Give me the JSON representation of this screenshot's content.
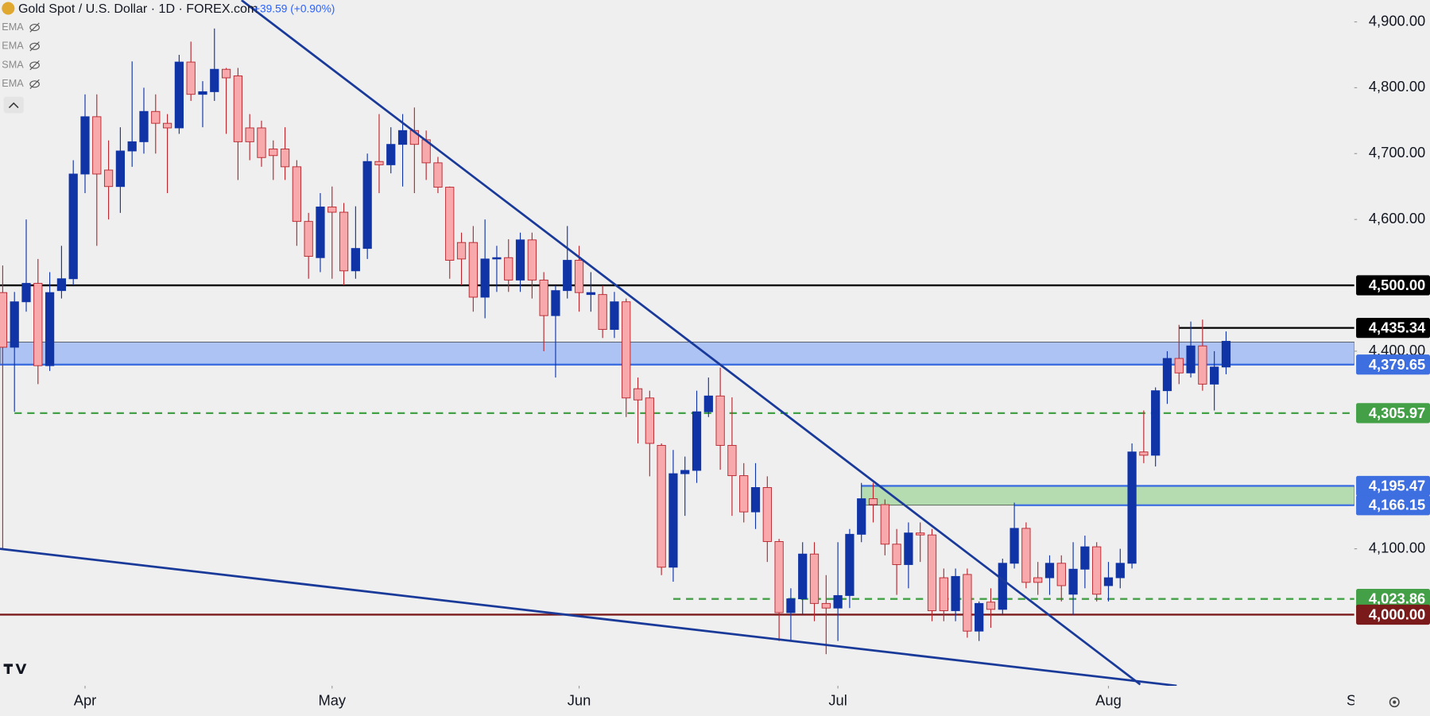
{
  "chart_data": {
    "type": "candlestick",
    "title": "Gold Spot / U.S. Dollar · 1D · FOREX.com",
    "subtitle": "+39.59 (+0.90%)",
    "indicators": [
      "EMA",
      "EMA",
      "SMA",
      "EMA"
    ],
    "up_color": "#1034a6",
    "down_color": "#f7a9ac",
    "down_edge": "#b8262e",
    "open": [
      4489,
      4406,
      4475,
      4503,
      4378,
      4492,
      4510,
      4669,
      4756,
      4675,
      4650,
      4704,
      4718,
      4764,
      4746,
      4739,
      4839,
      4790,
      4794,
      4828,
      4818,
      4739,
      4739,
      4707,
      4707,
      4680,
      4597,
      4542,
      4619,
      4611,
      4522,
      4556,
      4688,
      4683,
      4714,
      4735,
      4721,
      4686,
      4649,
      4565,
      4565,
      4482,
      4540,
      4542,
      4508,
      4569,
      4508,
      4454,
      4492,
      4538,
      4486,
      4486,
      4433,
      4475,
      4343,
      4329,
      4257,
      4072,
      4214,
      4219,
      4308,
      4332,
      4257,
      4211,
      4156,
      4193,
      4111,
      4003,
      4024,
      4092,
      4017,
      4010,
      4029,
      4122,
      4176,
      4167,
      4107,
      4076,
      4124,
      4121,
      4056,
      4006,
      4061,
      3975,
      4019,
      4008,
      4078,
      4131,
      4056,
      4056,
      4078,
      4031,
      4069,
      4103,
      4044,
      4056,
      4078,
      4247,
      4242,
      4340,
      4389,
      4367,
      4408,
      4350,
      4376
    ],
    "high": [
      4530,
      4490,
      4600,
      4540,
      4520,
      4560,
      4690,
      4790,
      4790,
      4720,
      4740,
      4840,
      4800,
      4790,
      4760,
      4850,
      4870,
      4810,
      4890,
      4830,
      4830,
      4760,
      4750,
      4720,
      4740,
      4690,
      4610,
      4640,
      4650,
      4625,
      4620,
      4700,
      4760,
      4740,
      4760,
      4770,
      4735,
      4695,
      4650,
      4580,
      4590,
      4600,
      4560,
      4570,
      4580,
      4580,
      4520,
      4500,
      4590,
      4560,
      4520,
      4500,
      4490,
      4480,
      4360,
      4340,
      4260,
      4250,
      4240,
      4340,
      4360,
      4375,
      4330,
      4230,
      4230,
      4210,
      4115,
      4040,
      4110,
      4110,
      4060,
      4110,
      4130,
      4200,
      4200,
      4175,
      4130,
      4140,
      4140,
      4130,
      4070,
      4070,
      4070,
      4020,
      4040,
      4085,
      4170,
      4140,
      4080,
      4090,
      4090,
      4110,
      4120,
      4110,
      4080,
      4100,
      4260,
      4310,
      4345,
      4400,
      4440,
      4445,
      4448,
      4400,
      4430
    ],
    "low": [
      4100,
      4308,
      4460,
      4350,
      4370,
      4480,
      4500,
      4640,
      4560,
      4600,
      4610,
      4680,
      4700,
      4700,
      4640,
      4730,
      4780,
      4740,
      4780,
      4730,
      4660,
      4690,
      4680,
      4660,
      4660,
      4560,
      4510,
      4520,
      4510,
      4500,
      4510,
      4540,
      4640,
      4670,
      4650,
      4640,
      4660,
      4640,
      4510,
      4500,
      4460,
      4450,
      4490,
      4490,
      4490,
      4480,
      4400,
      4360,
      4480,
      4460,
      4460,
      4420,
      4420,
      4300,
      4260,
      4210,
      4060,
      4050,
      4150,
      4200,
      4300,
      4220,
      4150,
      4140,
      4130,
      4080,
      3960,
      3960,
      4000,
      3990,
      3940,
      3960,
      4010,
      4110,
      4140,
      4090,
      4030,
      4040,
      4080,
      3990,
      3990,
      3990,
      3965,
      3960,
      3980,
      4000,
      4070,
      4040,
      4030,
      4030,
      4020,
      4000,
      4040,
      4020,
      4020,
      4040,
      4070,
      4230,
      4225,
      4320,
      4350,
      4360,
      4340,
      4310,
      4365
    ],
    "close": [
      4406,
      4475,
      4503,
      4378,
      4489,
      4510,
      4669,
      4756,
      4669,
      4650,
      4704,
      4718,
      4764,
      4746,
      4739,
      4839,
      4790,
      4794,
      4828,
      4815,
      4718,
      4718,
      4694,
      4697,
      4680,
      4597,
      4544,
      4619,
      4611,
      4522,
      4556,
      4688,
      4683,
      4714,
      4735,
      4714,
      4686,
      4649,
      4538,
      4540,
      4482,
      4540,
      4542,
      4508,
      4569,
      4508,
      4454,
      4492,
      4538,
      4489,
      4489,
      4433,
      4475,
      4329,
      4326,
      4260,
      4072,
      4214,
      4219,
      4308,
      4332,
      4257,
      4211,
      4156,
      4193,
      4111,
      4003,
      4024,
      4092,
      4017,
      4010,
      4029,
      4122,
      4176,
      4167,
      4107,
      4076,
      4124,
      4121,
      4006,
      4006,
      4058,
      3975,
      4017,
      4008,
      4078,
      4131,
      4049,
      4049,
      4078,
      4044,
      4069,
      4103,
      4031,
      4056,
      4078,
      4247,
      4242,
      4340,
      4389,
      4367,
      4408,
      4350,
      4376,
      4415
    ],
    "xlim": [
      -0.23,
      114.9
    ],
    "xticks": [
      {
        "value": 7,
        "label": "Apr"
      },
      {
        "value": 28,
        "label": "May"
      },
      {
        "value": 49,
        "label": "Jun"
      },
      {
        "value": 71,
        "label": "Jul"
      },
      {
        "value": 94,
        "label": "Aug"
      },
      {
        "value": 115,
        "label": "Se"
      }
    ],
    "ylim": [
      3892,
      4933
    ],
    "yticks": [
      {
        "value": 4100,
        "label": "4,100.00"
      },
      {
        "value": 4400,
        "label": "4,400.00"
      },
      {
        "value": 4600,
        "label": "4,600.00"
      },
      {
        "value": 4700,
        "label": "4,700.00"
      },
      {
        "value": 4800,
        "label": "4,800.00"
      },
      {
        "value": 4900,
        "label": "4,900.00"
      }
    ],
    "zones": [
      {
        "low": 4379.65,
        "high": 4414,
        "color": "#adc3f3",
        "start": -0.23
      },
      {
        "low": 4166.15,
        "high": 4195.47,
        "color": "#b5dcb0",
        "start": 73
      }
    ],
    "levels": [
      {
        "value": 4500,
        "label": "4,500.00",
        "color": "#000000",
        "dash": false,
        "start": -0.23
      },
      {
        "value": 4435.34,
        "label": "4,435.34",
        "color": "#000000",
        "dash": false,
        "start": 100
      },
      {
        "value": 4379.65,
        "label": "4,379.65",
        "color": "#3d6fe0",
        "dash": false,
        "start": -0.23
      },
      {
        "value": 4305.97,
        "label": "4,305.97",
        "color": "#43a047",
        "dash": true,
        "start": 1
      },
      {
        "value": 4195.47,
        "label": "4,195.47",
        "color": "#3d6fe0",
        "dash": false,
        "start": 73
      },
      {
        "value": 4166.15,
        "label": "4,166.15",
        "color": "#3d6fe0",
        "dash": false,
        "start": 86
      },
      {
        "value": 4023.86,
        "label": "4,023.86",
        "color": "#43a047",
        "dash": true,
        "start": 57
      },
      {
        "value": 4000,
        "label": "4,000.00",
        "color": "#7b1a1a",
        "dash": false,
        "start": -0.23
      }
    ],
    "trendlines": [
      {
        "x": [
          20.3,
          96.7
        ],
        "y": [
          4933,
          3894
        ],
        "color": "#1a3a9a"
      },
      {
        "x": [
          -0.23,
          99.8
        ],
        "y": [
          4100,
          3892
        ],
        "color": "#1a3a9a"
      }
    ]
  }
}
